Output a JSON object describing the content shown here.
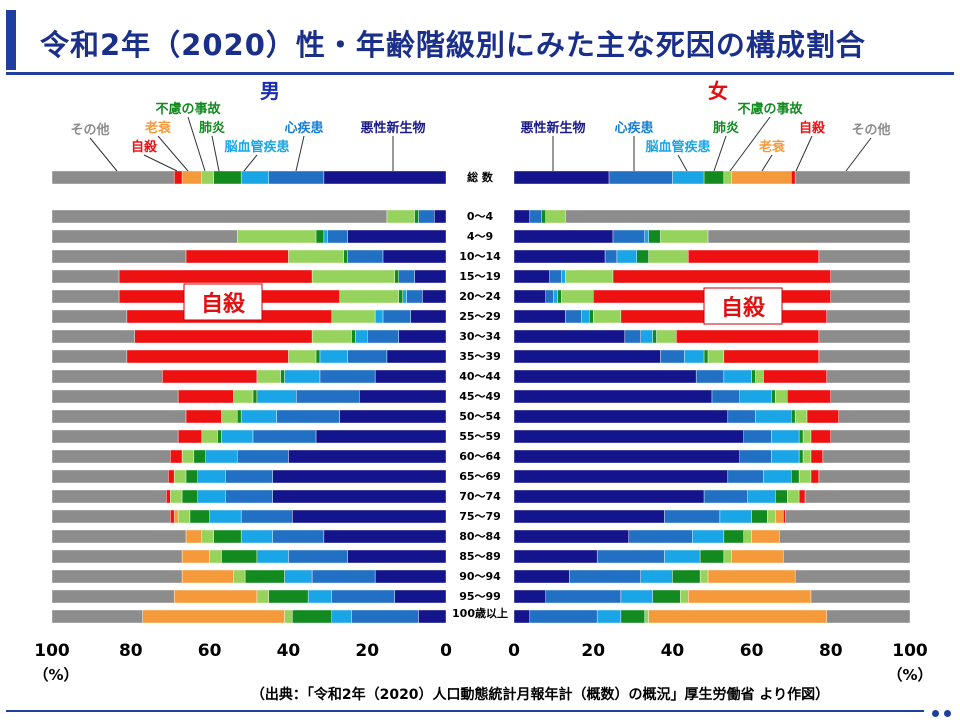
{
  "title": "令和2年（2020）性・年齢階級別にみた主な死因の構成割合",
  "source": "（出典：「令和2年（2020）人口動態統計月報年計（概数）の概況」厚生労働省 より作図）",
  "colors": {
    "悪性新生物": "#14148c",
    "心疾患": "#2270c4",
    "脳血管疾患": "#1aa6e6",
    "肺炎": "#138a20",
    "不慮の事故": "#96d35c",
    "老衰": "#f59a3a",
    "自殺": "#ee1111",
    "その他": "#8c8c8c"
  },
  "chart_data": [
    {
      "type": "bar",
      "orientation": "horizontal-stacked",
      "panel_label": "男",
      "direction": "right-to-left",
      "xlim": [
        0,
        100
      ],
      "x_ticks": [
        "100",
        "80",
        "60",
        "40",
        "20",
        "0"
      ],
      "x_unit": "（%）",
      "causes": [
        "悪性新生物",
        "心疾患",
        "脳血管疾患",
        "肺炎",
        "不慮の事故",
        "老衰",
        "自殺",
        "その他"
      ],
      "legend_labels": [
        "その他",
        "老衰",
        "自殺",
        "不慮の事故",
        "肺炎",
        "脳血管疾患",
        "心疾患",
        "悪性新生物"
      ],
      "big_label": "自殺",
      "rows": [
        {
          "label": "総 数",
          "values": [
            31,
            14,
            7,
            7,
            3,
            5,
            2,
            31
          ]
        },
        {
          "label": "0～4",
          "values": [
            3,
            4,
            0,
            1,
            7,
            0,
            0,
            85
          ]
        },
        {
          "label": "4～9",
          "values": [
            25,
            5,
            1,
            2,
            20,
            0,
            0,
            47
          ]
        },
        {
          "label": "10～14",
          "values": [
            16,
            9,
            0,
            1,
            14,
            0,
            26,
            34
          ]
        },
        {
          "label": "15～19",
          "values": [
            8,
            4,
            0,
            1,
            21,
            0,
            49,
            17
          ]
        },
        {
          "label": "20～24",
          "values": [
            6,
            4,
            1,
            1,
            15,
            0,
            56,
            17
          ]
        },
        {
          "label": "25～29",
          "values": [
            9,
            7,
            2,
            0,
            11,
            0,
            52,
            19
          ]
        },
        {
          "label": "30～34",
          "values": [
            12,
            8,
            3,
            1,
            10,
            0,
            45,
            21
          ]
        },
        {
          "label": "35～39",
          "values": [
            15,
            10,
            7,
            1,
            7,
            0,
            41,
            19
          ]
        },
        {
          "label": "40～44",
          "values": [
            18,
            14,
            9,
            1,
            6,
            0,
            24,
            28
          ]
        },
        {
          "label": "45～49",
          "values": [
            22,
            16,
            10,
            1,
            5,
            0,
            14,
            32
          ]
        },
        {
          "label": "50～54",
          "values": [
            27,
            16,
            9,
            1,
            4,
            0,
            9,
            34
          ]
        },
        {
          "label": "55～59",
          "values": [
            33,
            16,
            8,
            1,
            4,
            0,
            6,
            32
          ]
        },
        {
          "label": "60～64",
          "values": [
            40,
            13,
            8,
            3,
            3,
            0,
            3,
            30
          ]
        },
        {
          "label": "65～69",
          "values": [
            44,
            12,
            7,
            3,
            3,
            0,
            1.5,
            29.5
          ]
        },
        {
          "label": "70～74",
          "values": [
            44,
            12,
            7,
            4,
            3,
            0,
            1,
            29
          ]
        },
        {
          "label": "75～79",
          "values": [
            39,
            13,
            8,
            5,
            3,
            1,
            1,
            30
          ]
        },
        {
          "label": "80～84",
          "values": [
            31,
            13,
            8,
            7,
            3,
            4,
            0,
            34
          ]
        },
        {
          "label": "85～89",
          "values": [
            25,
            15,
            8,
            9,
            3,
            7,
            0,
            33
          ]
        },
        {
          "label": "90～94",
          "values": [
            18,
            16,
            7,
            10,
            3,
            13,
            0,
            33
          ]
        },
        {
          "label": "95～99",
          "values": [
            13,
            16,
            6,
            10,
            3,
            21,
            0,
            31
          ]
        },
        {
          "label": "100歳以上",
          "values": [
            7,
            17,
            5,
            10,
            2,
            36,
            0,
            23
          ]
        }
      ]
    },
    {
      "type": "bar",
      "orientation": "horizontal-stacked",
      "panel_label": "女",
      "direction": "left-to-right",
      "xlim": [
        0,
        100
      ],
      "x_ticks": [
        "0",
        "20",
        "40",
        "60",
        "80",
        "100"
      ],
      "x_unit": "（%）",
      "causes": [
        "悪性新生物",
        "心疾患",
        "脳血管疾患",
        "肺炎",
        "不慮の事故",
        "老衰",
        "自殺",
        "その他"
      ],
      "legend_labels": [
        "悪性新生物",
        "心疾患",
        "脳血管疾患",
        "肺炎",
        "不慮の事故",
        "老衰",
        "自殺",
        "その他"
      ],
      "big_label": "自殺",
      "rows": [
        {
          "label": "総 数",
          "values": [
            24,
            16,
            8,
            5,
            2,
            15,
            1,
            29
          ]
        },
        {
          "label": "0～4",
          "values": [
            4,
            3,
            0,
            1,
            5,
            0,
            0,
            87
          ]
        },
        {
          "label": "4～9",
          "values": [
            25,
            8,
            1,
            3,
            12,
            0,
            0,
            51
          ]
        },
        {
          "label": "10～14",
          "values": [
            23,
            3,
            5,
            3,
            10,
            0,
            33,
            23
          ]
        },
        {
          "label": "15～19",
          "values": [
            9,
            3,
            1,
            0,
            12,
            0,
            55,
            20
          ]
        },
        {
          "label": "20～24",
          "values": [
            8,
            2,
            1,
            1,
            8,
            0,
            60,
            20
          ]
        },
        {
          "label": "25～29",
          "values": [
            13,
            4,
            2,
            1,
            7,
            0,
            52,
            21
          ]
        },
        {
          "label": "30～34",
          "values": [
            28,
            4,
            3,
            1,
            5,
            0,
            36,
            23
          ]
        },
        {
          "label": "35～39",
          "values": [
            37,
            6,
            5,
            1,
            4,
            0,
            24,
            23
          ]
        },
        {
          "label": "40～44",
          "values": [
            46,
            7,
            7,
            1,
            2,
            0,
            16,
            21
          ]
        },
        {
          "label": "45～49",
          "values": [
            50,
            7,
            8,
            1,
            3,
            0,
            11,
            20
          ]
        },
        {
          "label": "50～54",
          "values": [
            54,
            7,
            9,
            1,
            3,
            0,
            8,
            18
          ]
        },
        {
          "label": "55～59",
          "values": [
            58,
            7,
            7,
            1,
            2,
            0,
            5,
            20
          ]
        },
        {
          "label": "60～64",
          "values": [
            57,
            8,
            7,
            1,
            2,
            0,
            3,
            22
          ]
        },
        {
          "label": "65～69",
          "values": [
            54,
            9,
            7,
            2,
            3,
            0,
            2,
            23
          ]
        },
        {
          "label": "70～74",
          "values": [
            48,
            11,
            7,
            3,
            3,
            0,
            1.5,
            26.5
          ]
        },
        {
          "label": "75～79",
          "values": [
            38,
            14,
            8,
            4,
            2,
            2,
            0.5,
            31.5
          ]
        },
        {
          "label": "80～84",
          "values": [
            29,
            16,
            8,
            5,
            2,
            7,
            0,
            33
          ]
        },
        {
          "label": "85～89",
          "values": [
            21,
            17,
            9,
            6,
            2,
            13,
            0,
            32
          ]
        },
        {
          "label": "90～94",
          "values": [
            14,
            18,
            8,
            7,
            2,
            22,
            0,
            29
          ]
        },
        {
          "label": "95～99",
          "values": [
            8,
            19,
            8,
            7,
            2,
            31,
            0,
            25
          ]
        },
        {
          "label": "100歳以上",
          "values": [
            4,
            17,
            6,
            6,
            1,
            45,
            0,
            21
          ]
        }
      ]
    }
  ]
}
